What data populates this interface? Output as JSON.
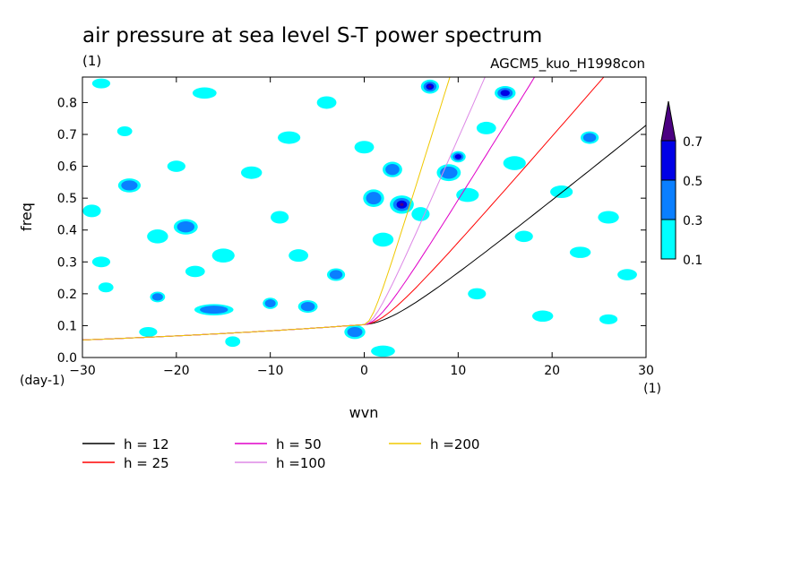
{
  "header": {
    "title": "air pressure at sea level S-T power spectrum",
    "unit": "(1)",
    "experiment": "AGCM5_kuo_H1998con"
  },
  "chart_data": {
    "type": "contour",
    "xlabel": "wvn",
    "ylabel": "freq",
    "xunit": "(1)",
    "yunit": "(day-1)",
    "xlim": [
      -30,
      30
    ],
    "ylim": [
      0,
      0.88
    ],
    "xticks": [
      -30,
      -20,
      -10,
      0,
      10,
      20,
      30
    ],
    "yticks": [
      0.0,
      0.1,
      0.2,
      0.3,
      0.4,
      0.5,
      0.6,
      0.7,
      0.8
    ],
    "colorbar": {
      "levels": [
        "0.1",
        "0.3",
        "0.5",
        "0.7"
      ],
      "colors": [
        "#00ffff",
        "#0a7fff",
        "#0000e6",
        "#4b0082"
      ]
    },
    "series": [
      {
        "name": "h = 12",
        "h": 12,
        "color": "#000000"
      },
      {
        "name": "h = 25",
        "h": 25,
        "color": "#ff0000"
      },
      {
        "name": "h = 50",
        "h": 50,
        "color": "#e000c8"
      },
      {
        "name": "h =100",
        "h": 100,
        "color": "#dd88e6"
      },
      {
        "name": "h =200",
        "h": 200,
        "color": "#f0c800"
      }
    ],
    "blobs": [
      [
        -29,
        0.46,
        1.2,
        0.018,
        1
      ],
      [
        -27.5,
        0.22,
        1,
        0.014,
        1
      ],
      [
        -25,
        0.54,
        1.5,
        0.02,
        2
      ],
      [
        -25.5,
        0.71,
        1,
        0.014,
        1
      ],
      [
        -22,
        0.38,
        1.4,
        0.02,
        1
      ],
      [
        -22,
        0.19,
        1,
        0.015,
        2
      ],
      [
        -19,
        0.41,
        1.6,
        0.022,
        2
      ],
      [
        -18,
        0.27,
        1.3,
        0.016,
        1
      ],
      [
        -16,
        0.15,
        2.6,
        0.016,
        2
      ],
      [
        -15,
        0.32,
        1.5,
        0.02,
        1
      ],
      [
        -14,
        0.05,
        1,
        0.015,
        1
      ],
      [
        -10,
        0.17,
        1,
        0.016,
        2
      ],
      [
        -6,
        0.16,
        1.3,
        0.018,
        2
      ],
      [
        -9,
        0.44,
        1.2,
        0.018,
        1
      ],
      [
        -3,
        0.26,
        1.2,
        0.018,
        2
      ],
      [
        -1,
        0.08,
        1.4,
        0.02,
        2
      ],
      [
        1,
        0.5,
        1.4,
        0.025,
        2
      ],
      [
        2,
        0.37,
        1.4,
        0.02,
        1
      ],
      [
        4,
        0.48,
        1.6,
        0.026,
        4
      ],
      [
        3,
        0.59,
        1.3,
        0.022,
        2
      ],
      [
        7,
        0.85,
        1.2,
        0.02,
        4
      ],
      [
        6,
        0.45,
        1.2,
        0.02,
        1
      ],
      [
        9,
        0.58,
        1.6,
        0.024,
        2
      ],
      [
        10,
        0.63,
        1,
        0.016,
        3
      ],
      [
        11,
        0.51,
        1.5,
        0.02,
        1
      ],
      [
        15,
        0.83,
        1.4,
        0.02,
        3
      ],
      [
        13,
        0.72,
        1.3,
        0.018,
        1
      ],
      [
        16,
        0.61,
        1.5,
        0.02,
        1
      ],
      [
        21,
        0.52,
        1.5,
        0.018,
        1
      ],
      [
        23,
        0.33,
        1.4,
        0.016,
        1
      ],
      [
        24,
        0.69,
        1.2,
        0.018,
        2
      ],
      [
        26,
        0.44,
        1.4,
        0.018,
        1
      ],
      [
        28,
        0.26,
        1.3,
        0.016,
        1
      ],
      [
        19,
        0.13,
        1.4,
        0.016,
        1
      ],
      [
        26,
        0.12,
        1.2,
        0.014,
        1
      ],
      [
        -8,
        0.69,
        1.5,
        0.018,
        1
      ],
      [
        -12,
        0.58,
        1.4,
        0.018,
        1
      ],
      [
        -20,
        0.6,
        1.2,
        0.016,
        1
      ],
      [
        -28,
        0.3,
        1.2,
        0.015,
        1
      ],
      [
        -4,
        0.8,
        1.3,
        0.018,
        1
      ],
      [
        2,
        0.02,
        1.6,
        0.016,
        1
      ],
      [
        -23,
        0.08,
        1.2,
        0.014,
        1
      ],
      [
        -17,
        0.83,
        1.6,
        0.016,
        1
      ],
      [
        -28,
        0.86,
        1.2,
        0.014,
        1
      ],
      [
        17,
        0.38,
        1.2,
        0.016,
        1
      ],
      [
        0,
        0.66,
        1.3,
        0.018,
        1
      ],
      [
        12,
        0.2,
        1.2,
        0.016,
        1
      ],
      [
        -7,
        0.32,
        1.3,
        0.018,
        1
      ]
    ]
  },
  "legend": {
    "col1": [
      {
        "label": "h = 12",
        "color": "#000000"
      },
      {
        "label": "h = 25",
        "color": "#ff0000"
      }
    ],
    "col2": [
      {
        "label": "h = 50",
        "color": "#e000c8"
      },
      {
        "label": "h =100",
        "color": "#dd88e6"
      }
    ],
    "col3": [
      {
        "label": "h =200",
        "color": "#f0c800"
      }
    ]
  }
}
